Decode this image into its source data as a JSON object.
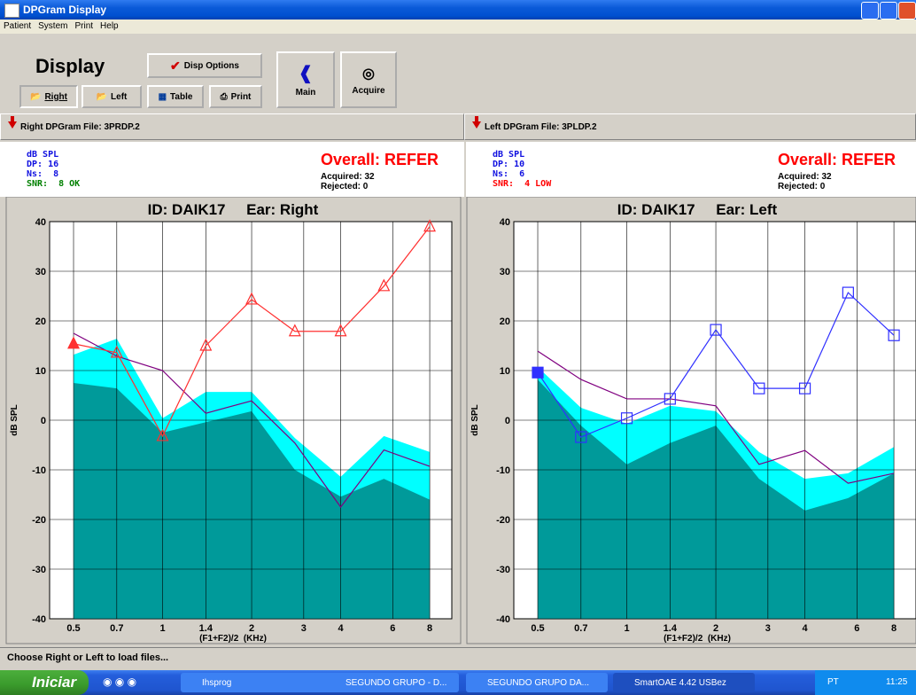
{
  "window": {
    "title": "DPGram Display"
  },
  "menu": [
    "Patient",
    "System",
    "Print",
    "Help"
  ],
  "toolbar": {
    "heading": "Display",
    "options": "Disp Options",
    "right": "Right",
    "left": "Left",
    "table": "Table",
    "print": "Print",
    "main": "Main",
    "acquire": "Acquire"
  },
  "panels": [
    {
      "file": "Right DPGram File: 3PRDP.2",
      "stats": [
        "dB SPL",
        "DP: 16",
        "Ns:  8",
        "SNR:  8 OK"
      ],
      "overall": "Overall: REFER",
      "acquired": "Acquired: 32",
      "rejected": "Rejected: 0",
      "chart": {
        "type": "line",
        "title": "ID: DAIK17     Ear: Right",
        "xlabel": "(F1+F2)/2  (KHz)",
        "ylabel": "dB SPL",
        "xscale": "log",
        "xlim": [
          0.415,
          9.5
        ],
        "ylim": [
          -40,
          40
        ],
        "xticks": [
          0.5,
          0.7,
          1,
          1.4,
          2,
          3,
          4,
          6,
          8
        ],
        "yticks": [
          -40,
          -30,
          -20,
          -10,
          0,
          10,
          20,
          30,
          40
        ],
        "grid": true,
        "x": [
          0.5,
          0.7,
          1,
          1.4,
          2,
          2.8,
          4,
          5.6,
          8
        ],
        "series": [
          {
            "style": "area",
            "color": "#00ffff",
            "values": [
              13.2,
              16.4,
              0.4,
              5.7,
              5.7,
              -3.6,
              -11.4,
              -3.2,
              -6.4
            ]
          },
          {
            "style": "area",
            "color": "#009a9a",
            "values": [
              7.5,
              6.4,
              -2.5,
              -0.4,
              1.8,
              -10,
              -15.4,
              -11.8,
              -16
            ]
          },
          {
            "style": "line",
            "color": "#800080",
            "values": [
              17.5,
              12.9,
              10,
              1.4,
              3.9,
              -4.6,
              -17.5,
              -6,
              -9.3
            ]
          },
          {
            "style": "line",
            "color": "#ff3030",
            "marker": "triangle",
            "first_marker_filled": true,
            "values": [
              15.4,
              13.6,
              -3.2,
              15,
              24.3,
              17.9,
              17.9,
              27,
              39
            ]
          }
        ]
      }
    },
    {
      "file": "Left DPGram File: 3PLDP.2",
      "stats": [
        "dB SPL",
        "DP: 10",
        "Ns:  6",
        "SNR:  4 LOW"
      ],
      "overall": "Overall: REFER",
      "acquired": "Acquired: 32",
      "rejected": "Rejected: 0",
      "chart": {
        "type": "line",
        "title": "ID: DAIK17     Ear: Left",
        "xlabel": "(F1+F2)/2  (KHz)",
        "ylabel": "dB SPL",
        "xscale": "log",
        "xlim": [
          0.415,
          9.5
        ],
        "ylim": [
          -40,
          40
        ],
        "xticks": [
          0.5,
          0.7,
          1,
          1.4,
          2,
          3,
          4,
          6,
          8
        ],
        "yticks": [
          -40,
          -30,
          -20,
          -10,
          0,
          10,
          20,
          30,
          40
        ],
        "grid": true,
        "x": [
          0.5,
          0.7,
          1,
          1.4,
          2,
          2.8,
          4,
          5.6,
          8
        ],
        "series": [
          {
            "style": "area",
            "color": "#00ffff",
            "values": [
              10.7,
              2.5,
              -0.7,
              2.9,
              1.8,
              -6.4,
              -11.8,
              -10.7,
              -5.4
            ]
          },
          {
            "style": "area",
            "color": "#009a9a",
            "values": [
              8.2,
              -1.1,
              -8.9,
              -4.6,
              -1.1,
              -11.8,
              -18.2,
              -15.7,
              -10.7
            ]
          },
          {
            "style": "line",
            "color": "#800080",
            "values": [
              13.9,
              8.2,
              4.3,
              4.3,
              2.9,
              -8.9,
              -6.1,
              -12.7,
              -10.7
            ]
          },
          {
            "style": "line",
            "color": "#3030ff",
            "marker": "square",
            "first_marker_filled": true,
            "values": [
              9.6,
              -3.4,
              0.4,
              4.3,
              18.2,
              6.4,
              6.4,
              25.7,
              17.1
            ]
          }
        ]
      }
    }
  ],
  "status": "Choose Right or Left to load files...",
  "taskbar": {
    "start": "Iniciar",
    "tasks": [
      "Ihsprog",
      "SEGUNDO GRUPO - D...",
      "SEGUNDO GRUPO DA...",
      "SmartOAE 4.42 USBez"
    ],
    "lang": "PT",
    "clock": "11:25"
  }
}
